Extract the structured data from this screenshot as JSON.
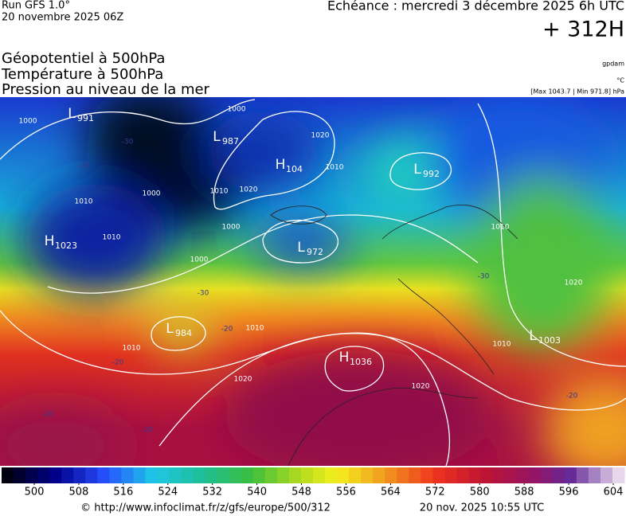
{
  "header": {
    "run": "Run GFS 1.0°",
    "run_date": "20 novembre 2025 06Z",
    "valid": "Echéance : mercredi 3 décembre 2025 6h UTC",
    "lead": "+ 312H",
    "fields": [
      "Géopotentiel à 500hPa",
      "Température à 500hPa",
      "Pression au niveau de la mer"
    ],
    "units": [
      "gpdam",
      "°C",
      "[Max 1043.7 | Min 971.8] hPa"
    ]
  },
  "map": {
    "centers": [
      {
        "kind": "L",
        "value": "991"
      },
      {
        "kind": "L",
        "value": "987"
      },
      {
        "kind": "H",
        "value": "104"
      },
      {
        "kind": "L",
        "value": "992"
      },
      {
        "kind": "H",
        "value": "1023"
      },
      {
        "kind": "L",
        "value": "972"
      },
      {
        "kind": "L",
        "value": "984"
      },
      {
        "kind": "H",
        "value": "1036"
      },
      {
        "kind": "L",
        "value": "1003"
      }
    ],
    "isobar_labels": [
      "1000",
      "1000",
      "1010",
      "1010",
      "1000",
      "1010",
      "1020",
      "1010",
      "1020",
      "1000",
      "1000",
      "1010",
      "1010",
      "1020",
      "1020",
      "1010",
      "1020",
      "1010"
    ],
    "temperature_labels": [
      "-30",
      "-20",
      "-30",
      "-20",
      "-20",
      "-30",
      "-20",
      "-20",
      "-20"
    ]
  },
  "scale": {
    "ticks": [
      500,
      508,
      516,
      524,
      532,
      540,
      548,
      556,
      564,
      572,
      580,
      588,
      596,
      604
    ]
  },
  "footer": {
    "url": "© http://www.infoclimat.fr/z/gfs/europe/500/312",
    "generated": "20 nov. 2025 10:55 UTC"
  }
}
